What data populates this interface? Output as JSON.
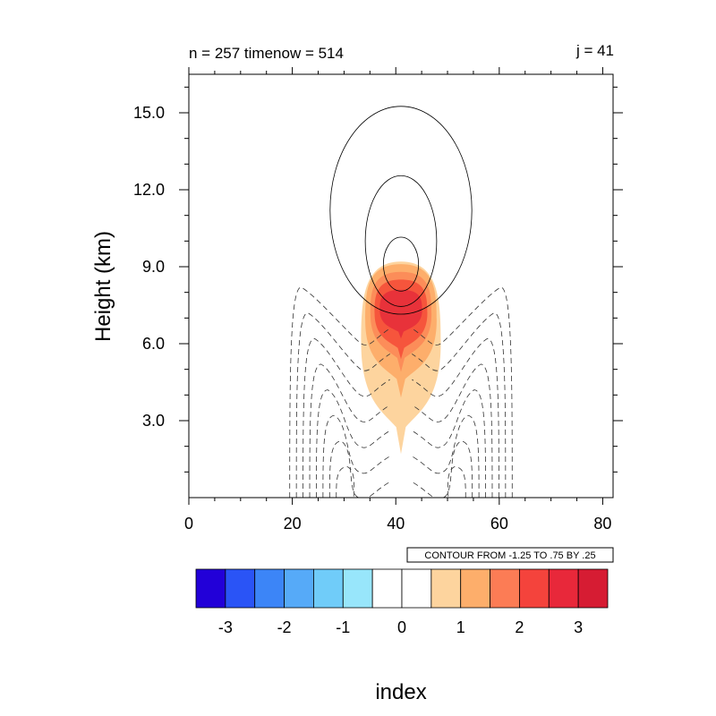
{
  "header": {
    "left": "n = 257 timenow = 514",
    "right": "j = 41"
  },
  "info_box": "CONTOUR FROM -1.25 TO .75 BY .25",
  "chart_data": {
    "type": "heatmap",
    "title": "",
    "xlabel": "index",
    "ylabel": "Height (km)",
    "xlim": [
      0,
      82
    ],
    "ylim": [
      0,
      16.5
    ],
    "x_ticks": [
      0,
      20,
      40,
      60,
      80
    ],
    "x_tick_labels": [
      "0",
      "20",
      "40",
      "60",
      "80"
    ],
    "y_ticks": [
      3,
      6,
      9,
      12,
      15
    ],
    "y_tick_labels": [
      "3.0",
      "6.0",
      "9.0",
      "12.0",
      "15.0"
    ],
    "grid": false,
    "filled_field": {
      "center_x": 41,
      "bands": [
        {
          "level": 0.5,
          "color": "#fdd49e",
          "x_range": [
            33.8,
            49.2
          ],
          "y_range": [
            1.7,
            9.2
          ]
        },
        {
          "level": 1.0,
          "color": "#fdae6b",
          "x_range": [
            34.6,
            48.4
          ],
          "y_range": [
            3.9,
            9.1
          ]
        },
        {
          "level": 1.5,
          "color": "#fc8d59",
          "x_range": [
            35.6,
            47.4
          ],
          "y_range": [
            4.9,
            8.8
          ]
        },
        {
          "level": 2.0,
          "color": "#f6553c",
          "x_range": [
            36.4,
            46.6
          ],
          "y_range": [
            5.4,
            8.5
          ]
        },
        {
          "level": 2.5,
          "color": "#e8323a",
          "x_range": [
            37.4,
            45.6
          ],
          "y_range": [
            6.2,
            8.1
          ]
        }
      ]
    },
    "line_contours": {
      "levels_from": -1.25,
      "levels_to": 0.75,
      "interval": 0.25,
      "positive_closed": [
        {
          "center": [
            41,
            11.2
          ],
          "half_width": 13.7,
          "half_height": 4.05
        },
        {
          "center": [
            41,
            10.0
          ],
          "half_width": 6.9,
          "half_height": 2.55
        },
        {
          "center": [
            41,
            9.1
          ],
          "half_width": 3.4,
          "half_height": 1.05
        }
      ],
      "negative_dashed_count": 8
    },
    "colorbar": {
      "colors": [
        "#2200d8",
        "#2a54f6",
        "#3c85f7",
        "#56aaf8",
        "#70ccf9",
        "#98e6fb",
        "#ffffff",
        "#ffffff",
        "#fdd49e",
        "#fdae6b",
        "#fc7c55",
        "#f4433c",
        "#e8283a",
        "#d61c33"
      ],
      "tick_values": [
        -3,
        -2,
        -1,
        0,
        1,
        2,
        3
      ],
      "tick_labels": [
        "-3",
        "-2",
        "-1",
        "0",
        "1",
        "2",
        "3"
      ]
    }
  }
}
